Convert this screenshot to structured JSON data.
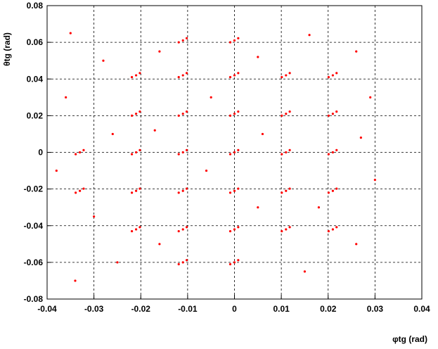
{
  "chart_data": {
    "type": "scatter",
    "x_label": "φtg (rad)",
    "y_label": "θtg (rad)",
    "xlim": [
      -0.04,
      0.04
    ],
    "ylim": [
      -0.08,
      0.08
    ],
    "xticks": [
      -0.04,
      -0.03,
      -0.02,
      -0.01,
      0,
      0.01,
      0.02,
      0.03,
      0.04
    ],
    "yticks": [
      -0.08,
      -0.06,
      -0.04,
      -0.02,
      0,
      0.02,
      0.04,
      0.06,
      0.08
    ],
    "grid": true,
    "color": "#ff0000",
    "x": [
      -0.011,
      -0.0102,
      -0.0119,
      0,
      0.0008,
      -0.0009,
      -0.021,
      -0.0202,
      -0.0219,
      -0.011,
      -0.0102,
      -0.0119,
      0,
      0.0008,
      -0.0009,
      0.011,
      0.0118,
      0.0101,
      0.021,
      0.0218,
      0.0201,
      -0.021,
      -0.0202,
      -0.0219,
      -0.011,
      -0.0102,
      -0.0119,
      0,
      0.0008,
      -0.0009,
      0.011,
      0.0118,
      0.0101,
      0.021,
      0.0218,
      0.0201,
      -0.033,
      -0.0322,
      -0.0339,
      -0.021,
      -0.0202,
      -0.0219,
      -0.011,
      -0.0102,
      -0.0119,
      0,
      0.0008,
      -0.0009,
      0.011,
      0.0118,
      0.0101,
      0.021,
      0.0218,
      0.0201,
      -0.033,
      -0.0322,
      -0.0339,
      -0.021,
      -0.0202,
      -0.0219,
      -0.011,
      -0.0102,
      -0.0119,
      0,
      0.0008,
      -0.0009,
      0.011,
      0.0118,
      0.0101,
      0.021,
      0.0218,
      0.0201,
      -0.021,
      -0.0202,
      -0.0219,
      -0.011,
      -0.0102,
      -0.0119,
      0,
      0.0008,
      -0.0009,
      0.011,
      0.0118,
      0.0101,
      0.021,
      0.0218,
      0.0201,
      -0.011,
      -0.0102,
      -0.0119,
      0,
      0.0008,
      -0.0009,
      -0.035,
      -0.028,
      -0.036,
      -0.026,
      -0.038,
      -0.03,
      -0.025,
      -0.034,
      -0.016,
      -0.005,
      0.005,
      0.016,
      0.026,
      0.029,
      0.027,
      0.03,
      0.026,
      0.015,
      0.005,
      -0.006,
      0.006,
      -0.016,
      0.018,
      -0.017
    ],
    "y": [
      0.061,
      0.0622,
      0.06,
      0.061,
      0.0622,
      0.06,
      0.042,
      0.0432,
      0.041,
      0.042,
      0.0432,
      0.041,
      0.042,
      0.0432,
      0.041,
      0.042,
      0.0432,
      0.041,
      0.042,
      0.0432,
      0.041,
      0.021,
      0.0222,
      0.02,
      0.021,
      0.0222,
      0.02,
      0.021,
      0.0222,
      0.02,
      0.021,
      0.0222,
      0.02,
      0.021,
      0.0222,
      0.02,
      0,
      0.0012,
      -0.001,
      0,
      0.0012,
      -0.001,
      0,
      0.0012,
      -0.001,
      0,
      0.0012,
      -0.001,
      0,
      0.0012,
      -0.001,
      0,
      0.0012,
      -0.001,
      -0.021,
      -0.0198,
      -0.022,
      -0.021,
      -0.0198,
      -0.022,
      -0.021,
      -0.0198,
      -0.022,
      -0.021,
      -0.0198,
      -0.022,
      -0.021,
      -0.0198,
      -0.022,
      -0.021,
      -0.0198,
      -0.022,
      -0.042,
      -0.0408,
      -0.043,
      -0.042,
      -0.0408,
      -0.043,
      -0.042,
      -0.0408,
      -0.043,
      -0.042,
      -0.0408,
      -0.043,
      -0.042,
      -0.0408,
      -0.043,
      -0.06,
      -0.0588,
      -0.061,
      -0.06,
      -0.0588,
      -0.061,
      0.065,
      0.05,
      0.03,
      0.01,
      -0.01,
      -0.035,
      -0.06,
      -0.07,
      0.055,
      0.03,
      0.052,
      0.064,
      0.055,
      0.03,
      0.008,
      -0.015,
      -0.05,
      -0.065,
      -0.03,
      -0.01,
      0.01,
      -0.05,
      -0.03,
      0.012
    ]
  }
}
